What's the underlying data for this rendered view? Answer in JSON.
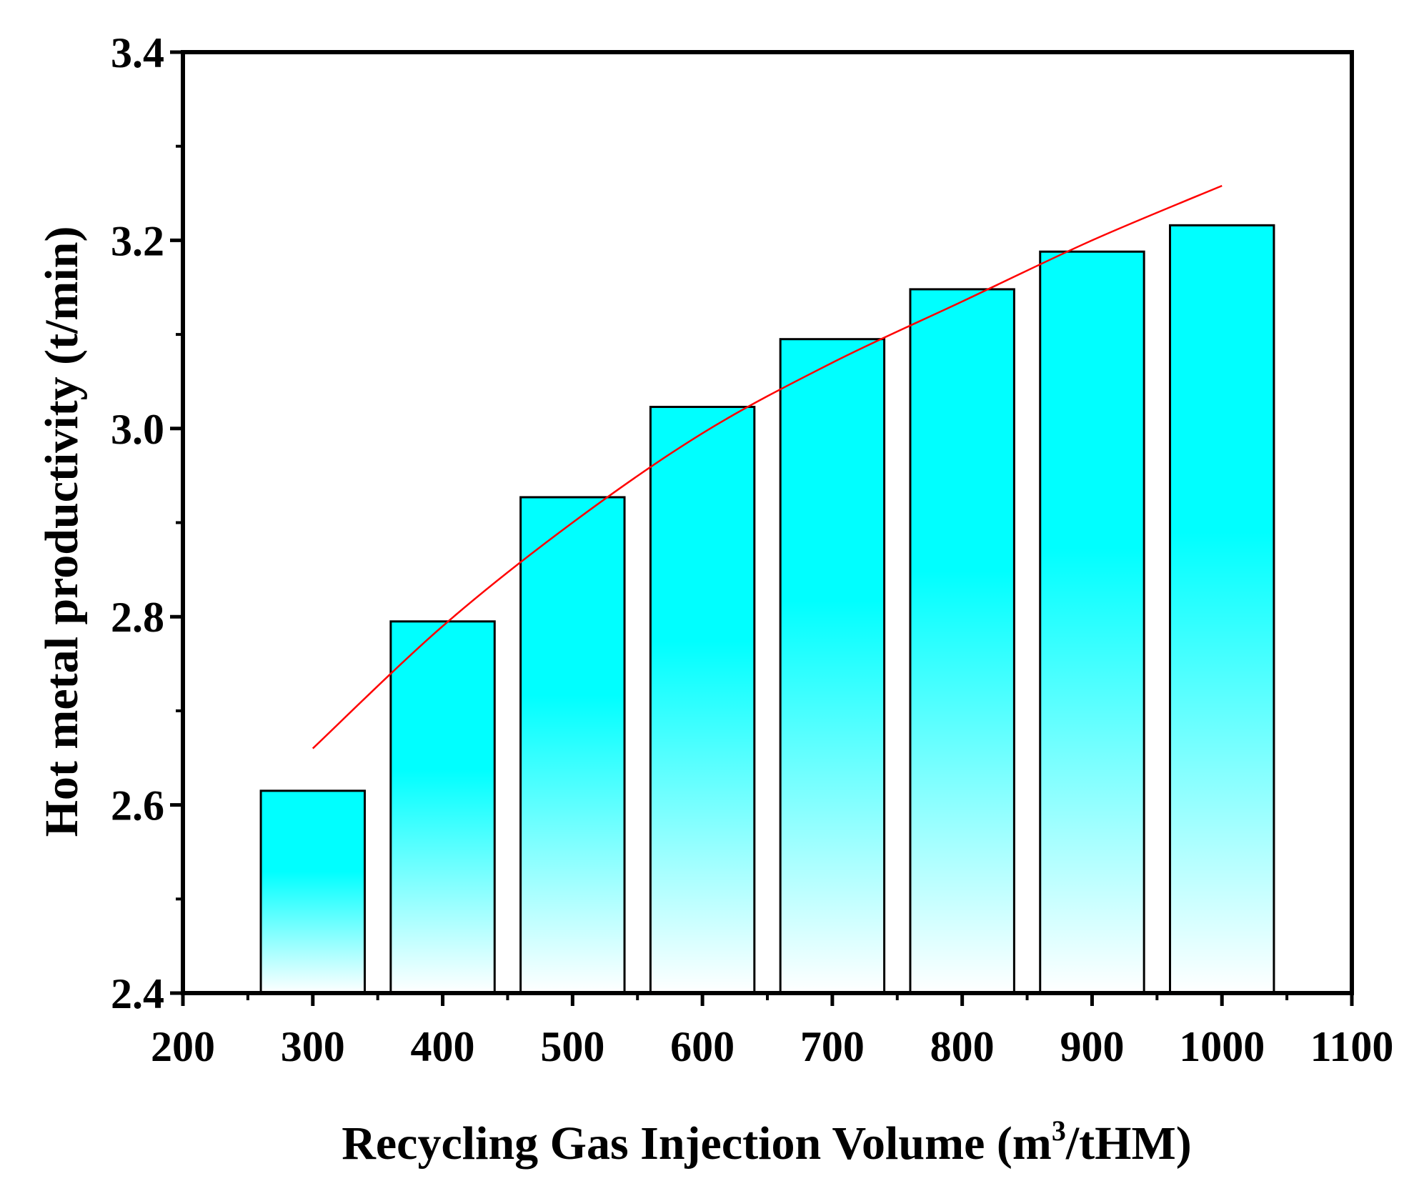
{
  "chart_data": {
    "type": "bar",
    "title": "",
    "xlabel": "Recycling Gas Injection Volume (m",
    "xlabel_superscript": "3",
    "xlabel_suffix": "/tHM)",
    "ylabel": "Hot metal productivity (t/min)",
    "xlim": [
      200,
      1100
    ],
    "ylim": [
      2.4,
      3.4
    ],
    "x_ticks": [
      200,
      300,
      400,
      500,
      600,
      700,
      800,
      900,
      1000,
      1100
    ],
    "y_ticks": [
      2.4,
      2.6,
      2.8,
      3.0,
      3.2,
      3.4
    ],
    "y_tick_labels": [
      "2.4",
      "2.6",
      "2.8",
      "3.0",
      "3.2",
      "3.4"
    ],
    "bar_width": 80,
    "x": [
      300,
      400,
      500,
      600,
      700,
      800,
      900,
      1000
    ],
    "values": [
      2.615,
      2.795,
      2.927,
      3.023,
      3.095,
      3.148,
      3.188,
      3.216
    ],
    "fit_line": {
      "x": [
        300,
        400,
        500,
        600,
        700,
        800,
        900,
        1000
      ],
      "y": [
        2.66,
        2.79,
        2.9,
        2.995,
        3.07,
        3.135,
        3.2,
        3.258
      ],
      "color": "#ff0000"
    },
    "bar_color_top": "#00ffff",
    "bar_color_bottom": "#ffffff",
    "grid": false
  }
}
